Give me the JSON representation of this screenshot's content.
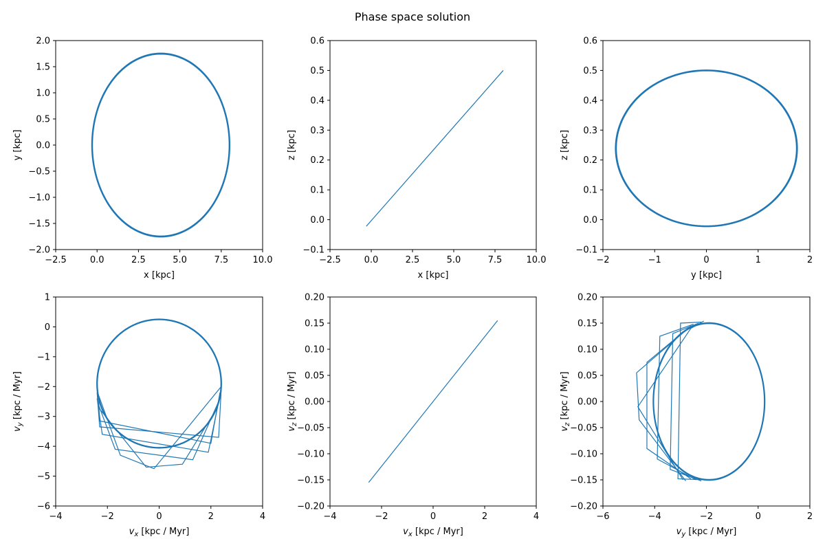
{
  "figure": {
    "title": "Phase space solution",
    "line_color": "#1f77b4"
  },
  "chart_data": [
    {
      "type": "line",
      "xlabel": "x [kpc]",
      "ylabel": "y [kpc]",
      "xlim": [
        -2.5,
        10.0
      ],
      "ylim": [
        -2.0,
        2.0
      ],
      "xticks": [
        "−2.5",
        "0.0",
        "2.5",
        "5.0",
        "7.5",
        "10.0"
      ],
      "yticks": [
        "−2.0",
        "−1.5",
        "−1.0",
        "−0.5",
        "0.0",
        "0.5",
        "1.0",
        "1.5",
        "2.0"
      ],
      "series": [
        {
          "shape": "ellipse",
          "center": [
            3.85,
            0.0
          ],
          "radii": [
            4.15,
            1.75
          ],
          "x": [
            8.0,
            7.44,
            5.93,
            3.85,
            1.77,
            0.26,
            -0.3,
            0.26,
            1.77,
            3.85,
            5.93,
            7.44,
            8.0
          ],
          "y": [
            0.0,
            0.875,
            1.516,
            1.75,
            1.516,
            0.875,
            0.0,
            -0.875,
            -1.516,
            -1.75,
            -1.516,
            -0.875,
            0.0
          ]
        }
      ]
    },
    {
      "type": "line",
      "xlabel": "x [kpc]",
      "ylabel": "z [kpc]",
      "xlim": [
        -2.5,
        10.0
      ],
      "ylim": [
        -0.1,
        0.6
      ],
      "xticks": [
        "−2.5",
        "0.0",
        "2.5",
        "5.0",
        "7.5",
        "10.0"
      ],
      "yticks": [
        "−0.1",
        "0.0",
        "0.1",
        "0.2",
        "0.3",
        "0.4",
        "0.5",
        "0.6"
      ],
      "series": [
        {
          "x": [
            -0.3,
            8.0
          ],
          "y": [
            -0.022,
            0.5
          ]
        }
      ]
    },
    {
      "type": "line",
      "xlabel": "y [kpc]",
      "ylabel": "z [kpc]",
      "xlim": [
        -2.0,
        2.0
      ],
      "ylim": [
        -0.1,
        0.6
      ],
      "xticks": [
        "−2",
        "−1",
        "0",
        "1",
        "2"
      ],
      "yticks": [
        "−0.1",
        "0.0",
        "0.1",
        "0.2",
        "0.3",
        "0.4",
        "0.5",
        "0.6"
      ],
      "series": [
        {
          "shape": "ellipse",
          "center": [
            0.0,
            0.239
          ],
          "radii": [
            1.75,
            0.261
          ],
          "x": [
            1.75,
            1.516,
            0.875,
            0.0,
            -0.875,
            -1.516,
            -1.75,
            -1.516,
            -0.875,
            0.0,
            0.875,
            1.516,
            1.75
          ],
          "y": [
            0.239,
            0.37,
            0.465,
            0.5,
            0.465,
            0.37,
            0.239,
            0.108,
            0.013,
            -0.022,
            0.013,
            0.108,
            0.239
          ]
        }
      ]
    },
    {
      "type": "line",
      "xlabel": "v_x [kpc / Myr]",
      "ylabel": "v_y [kpc / Myr]",
      "xlim": [
        -4,
        4
      ],
      "ylim": [
        -6,
        1
      ],
      "xticks": [
        "−4",
        "−2",
        "0",
        "2",
        "4"
      ],
      "yticks": [
        "−6",
        "−5",
        "−4",
        "−3",
        "−2",
        "−1",
        "0",
        "1"
      ],
      "series": [
        {
          "shape": "circle-with-polygon-loops",
          "center": [
            0.0,
            -1.9
          ],
          "radii": [
            2.4,
            2.15
          ],
          "loop_vertices": [
            [
              [
                -2.4,
                -2.2
              ],
              [
                -2.3,
                -3.35
              ],
              [
                2.3,
                -3.7
              ],
              [
                2.4,
                -2.1
              ]
            ],
            [
              [
                -2.4,
                -2.4
              ],
              [
                -2.2,
                -3.6
              ],
              [
                1.9,
                -4.2
              ],
              [
                2.35,
                -2.3
              ]
            ],
            [
              [
                -2.35,
                -2.6
              ],
              [
                -1.7,
                -4.1
              ],
              [
                1.3,
                -4.45
              ],
              [
                2.3,
                -2.5
              ]
            ],
            [
              [
                -2.3,
                -2.75
              ],
              [
                -0.5,
                -4.7
              ],
              [
                0.9,
                -4.6
              ],
              [
                2.25,
                -2.7
              ]
            ],
            [
              [
                -2.4,
                -2.15
              ],
              [
                -1.5,
                -4.3
              ],
              [
                -0.2,
                -4.75
              ],
              [
                2.4,
                -2.0
              ]
            ],
            [
              [
                -2.35,
                -2.3
              ],
              [
                -2.3,
                -3.15
              ],
              [
                2.0,
                -3.9
              ],
              [
                2.35,
                -2.2
              ]
            ]
          ]
        }
      ]
    },
    {
      "type": "line",
      "xlabel": "v_x [kpc / Myr]",
      "ylabel": "v_z [kpc / Myr]",
      "xlim": [
        -4,
        4
      ],
      "ylim": [
        -0.2,
        0.2
      ],
      "xticks": [
        "−4",
        "−2",
        "0",
        "2",
        "4"
      ],
      "yticks": [
        "−0.20",
        "−0.15",
        "−0.10",
        "−0.05",
        "0.00",
        "0.05",
        "0.10",
        "0.15",
        "0.20"
      ],
      "series": [
        {
          "x": [
            -2.5,
            2.5
          ],
          "y": [
            -0.155,
            0.155
          ]
        }
      ]
    },
    {
      "type": "line",
      "xlabel": "v_y [kpc / Myr]",
      "ylabel": "v_z [kpc / Myr]",
      "xlim": [
        -6,
        2
      ],
      "ylim": [
        -0.2,
        0.2
      ],
      "xticks": [
        "−6",
        "−4",
        "−2",
        "0",
        "2"
      ],
      "yticks": [
        "−0.20",
        "−0.15",
        "−0.10",
        "−0.05",
        "0.00",
        "0.05",
        "0.10",
        "0.15",
        "0.20"
      ],
      "series": [
        {
          "shape": "ellipse-with-polygon-loops",
          "center": [
            -1.9,
            0.0
          ],
          "radii": [
            2.15,
            0.15
          ],
          "loop_vertices": [
            [
              [
                -2.2,
                0.152
              ],
              [
                -3.0,
                0.15
              ],
              [
                -3.1,
                -0.148
              ],
              [
                -2.0,
                -0.15
              ]
            ],
            [
              [
                -2.3,
                0.15
              ],
              [
                -3.3,
                0.13
              ],
              [
                -3.4,
                -0.13
              ],
              [
                -2.2,
                -0.152
              ]
            ],
            [
              [
                -2.5,
                0.148
              ],
              [
                -3.8,
                0.125
              ],
              [
                -3.9,
                -0.11
              ],
              [
                -2.4,
                -0.15
              ]
            ],
            [
              [
                -2.6,
                0.145
              ],
              [
                -4.3,
                0.075
              ],
              [
                -4.3,
                -0.09
              ],
              [
                -2.6,
                -0.148
              ]
            ],
            [
              [
                -2.7,
                0.14
              ],
              [
                -4.7,
                0.055
              ],
              [
                -4.6,
                -0.035
              ],
              [
                -2.8,
                -0.152
              ]
            ],
            [
              [
                -2.1,
                0.154
              ],
              [
                -2.6,
                0.14
              ],
              [
                -4.65,
                -0.01
              ],
              [
                -2.9,
                -0.15
              ]
            ]
          ]
        }
      ]
    }
  ]
}
